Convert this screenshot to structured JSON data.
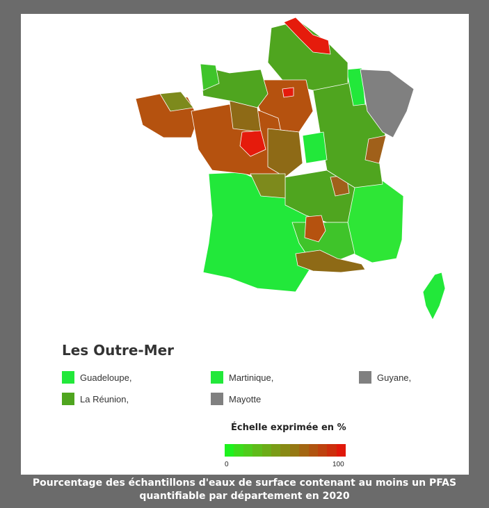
{
  "outre_mer": {
    "title": "Les Outre-Mer",
    "items": [
      {
        "label": "Guadeloupe,",
        "color": "#22e83a"
      },
      {
        "label": "Martinique,",
        "color": "#22e83a"
      },
      {
        "label": "Guyane,",
        "color": "#808080"
      },
      {
        "label": "La Réunion,",
        "color": "#4fa51f"
      },
      {
        "label": "Mayotte",
        "color": "#808080"
      }
    ]
  },
  "scale": {
    "title": "Échelle exprimée en %",
    "min_label": "0",
    "max_label": "100",
    "colors": [
      "#1ef21e",
      "#3ddc1c",
      "#4fcc1c",
      "#5fbb1a",
      "#6cac18",
      "#7a9c17",
      "#888a15",
      "#957813",
      "#a36612",
      "#b05410",
      "#be420e",
      "#cc2f0c",
      "#e0180a"
    ]
  },
  "caption": {
    "line1": "Pourcentage des échantillons d'eaux de surface contenant au moins un PFAS",
    "line2": "quantifiable par département en 2020"
  },
  "colors": {
    "bright_green": "#22e83a",
    "mid_green": "#4fa51f",
    "olive": "#7d8a1c",
    "brown": "#b5520f",
    "red": "#e51b0c",
    "gray": "#808080"
  }
}
